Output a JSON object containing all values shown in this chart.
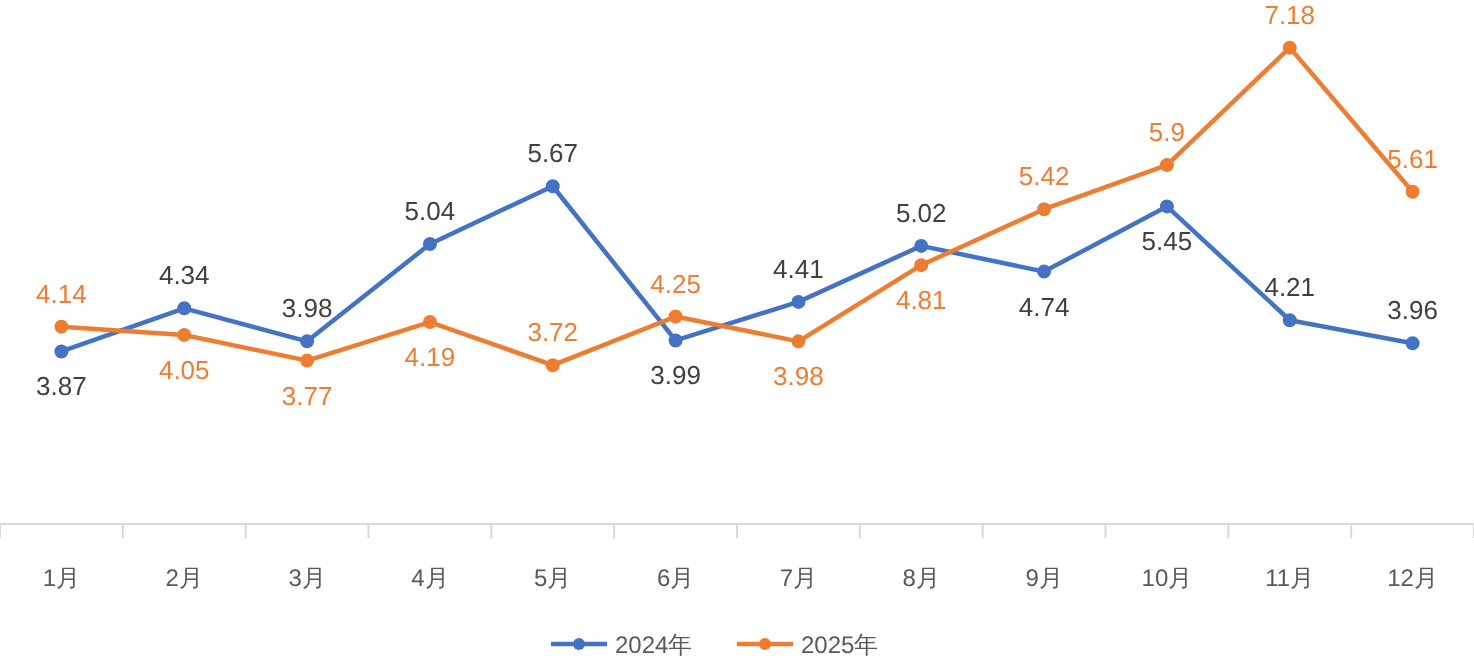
{
  "chart_data": {
    "type": "line",
    "categories": [
      "1月",
      "2月",
      "3月",
      "4月",
      "5月",
      "6月",
      "7月",
      "8月",
      "9月",
      "10月",
      "11月",
      "12月"
    ],
    "series": [
      {
        "name": "2024年",
        "color": "#4472c4",
        "values": [
          3.87,
          4.34,
          3.98,
          5.04,
          5.67,
          3.99,
          4.41,
          5.02,
          4.74,
          5.45,
          4.21,
          3.96
        ]
      },
      {
        "name": "2025年",
        "color": "#ed7d31",
        "values": [
          4.14,
          4.05,
          3.77,
          4.19,
          3.72,
          4.25,
          3.98,
          4.81,
          5.42,
          5.9,
          7.18,
          5.61
        ]
      }
    ],
    "data_labels": true,
    "marker": "circle",
    "line_style": "solid",
    "grid": false,
    "legend": "bottom"
  }
}
